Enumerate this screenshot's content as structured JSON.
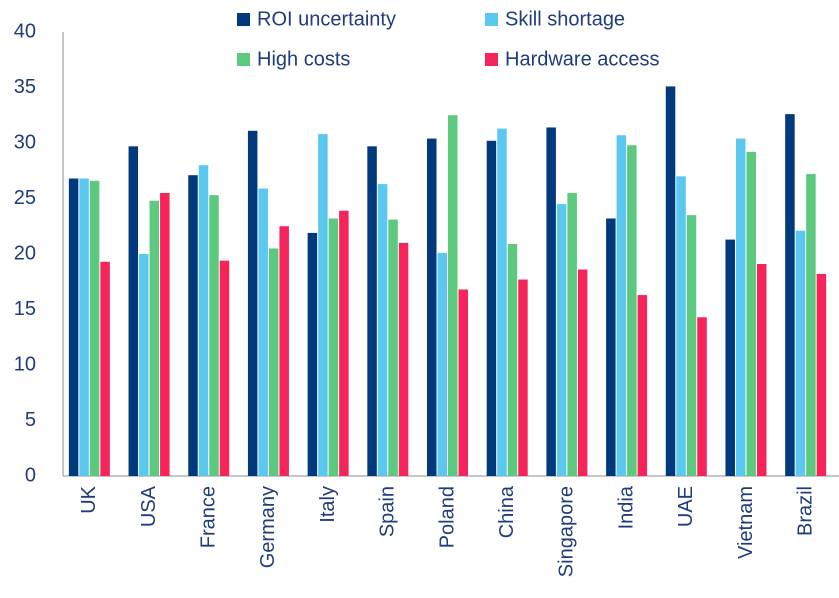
{
  "chart_data": {
    "type": "bar",
    "categories": [
      "UK",
      "USA",
      "France",
      "Germany",
      "Italy",
      "Spain",
      "Poland",
      "China",
      "Singapore",
      "India",
      "UAE",
      "Vietnam",
      "Brazil"
    ],
    "series": [
      {
        "name": "ROI uncertainty",
        "color": "#003a7d",
        "values": [
          26.8,
          29.7,
          27.1,
          31.1,
          21.9,
          29.7,
          30.4,
          30.2,
          31.4,
          23.2,
          35.1,
          21.3,
          32.6
        ]
      },
      {
        "name": "Skill shortage",
        "color": "#5bc8f0",
        "values": [
          26.8,
          20.0,
          28.0,
          25.9,
          30.8,
          26.3,
          20.1,
          31.3,
          24.5,
          30.7,
          27.0,
          30.4,
          22.1
        ]
      },
      {
        "name": "High costs",
        "color": "#5dc97e",
        "values": [
          26.6,
          24.8,
          25.3,
          20.5,
          23.2,
          23.1,
          32.5,
          20.9,
          25.5,
          29.8,
          23.5,
          29.2,
          27.2
        ]
      },
      {
        "name": "Hardware access",
        "color": "#f5245a",
        "values": [
          19.3,
          25.5,
          19.4,
          22.5,
          23.9,
          21.0,
          16.8,
          17.7,
          18.6,
          16.3,
          14.3,
          19.1,
          18.2
        ]
      }
    ],
    "ylim": [
      0,
      40
    ],
    "yticks": [
      0,
      5,
      10,
      15,
      20,
      25,
      30,
      35,
      40
    ],
    "grid": false,
    "legend": "top"
  }
}
